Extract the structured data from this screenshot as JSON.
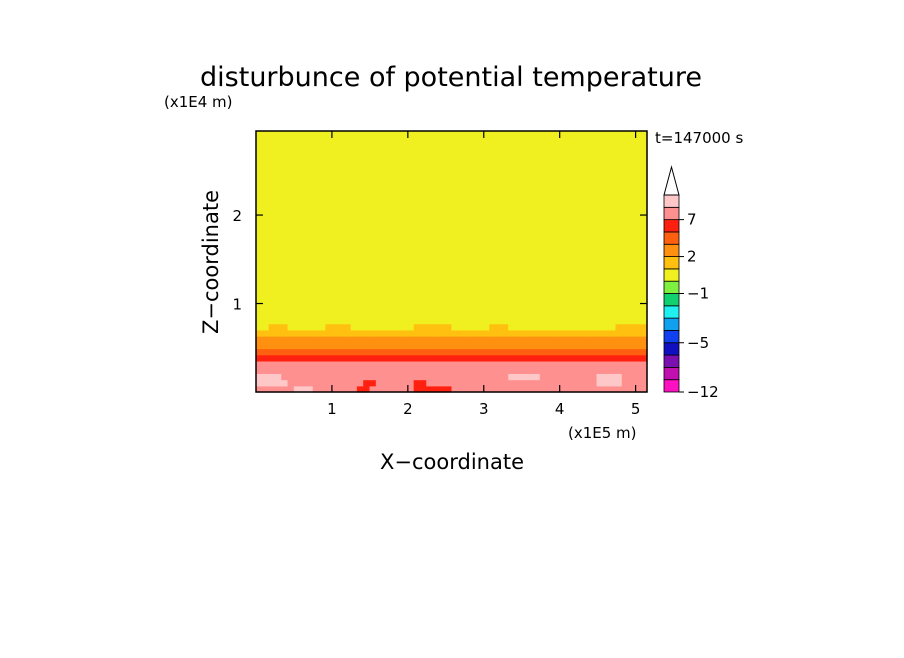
{
  "chart_data": {
    "type": "heatmap",
    "title": "disturbunce of potential temperature",
    "time_label": "t=147000 s",
    "xlabel": "X−coordinate",
    "ylabel": "Z−coordinate",
    "x_unit": "(x1E5 m)",
    "y_unit": "(x1E4 m)",
    "xlim": [
      0,
      5.15
    ],
    "ylim": [
      0,
      2.95
    ],
    "x_ticks": [
      1,
      2,
      3,
      4,
      5
    ],
    "y_ticks": [
      1,
      2
    ],
    "x_tick_labels": [
      "1",
      "2",
      "3",
      "4",
      "5"
    ],
    "y_tick_labels": [
      "1",
      "2"
    ],
    "grid": false,
    "colorbar": {
      "levels": [
        -12,
        -10,
        -8,
        -6.5,
        -5,
        -4,
        -3,
        -2,
        -1,
        0,
        1,
        2,
        3.5,
        5,
        7,
        9,
        11
      ],
      "colors": [
        "#ff10c0",
        "#c010b0",
        "#7a10b0",
        "#1010c0",
        "#1040f0",
        "#10a0f0",
        "#20f0f0",
        "#10d070",
        "#80f040",
        "#f0f020",
        "#ffc010",
        "#ff9010",
        "#ff6010",
        "#ff2010",
        "#ff9090",
        "#ffc8c8"
      ],
      "extend_max": true,
      "tick_values": [
        -12,
        -5,
        -1,
        2,
        7
      ],
      "tick_labels": [
        "−12",
        "−5",
        "−1",
        "2",
        "7"
      ]
    },
    "field_rows_bottom_to_top": [
      "eeeeeefffeeeeeeeddeeeeeeeddddddeeeeeeeeeeeeeeeeeeeeeeeeeeeeeee",
      "fffffeeeeeeeeeeeeddeeeeeeddeeeeeeeeeeeeeeeeeeeeeeeeeeeffffeeee",
      "ffffeeeeeeeeeeeeeeeeeeeeeeeeeeeeeeeeeeeefffffeeeeeeeeeffffeeee",
      "eeeeeeeeeeeeeeeeeeeeeeeeeeeeeeeeeeeeeeeeeeeeeeeeeeeeeeeeeeeeee",
      "eeeeeeeeeeeeeeeeeeeeeeeeeeeeeeeeeeeeeeeeeeeeeeeeeeeeeeeeeeeeee",
      "dddddddddddddddddddddddddddddddddddddddddddddddddddddddddddddd",
      "cccccccccccccccccccccccccccccccccccccccccccccccccccccccccccccc",
      "bbbbbbbbbbbbbbbbbbbbbbbbbbbbbbbbbbbbbbbbbbbbbbbbbbbbbbbbbbbbbb",
      "bbbbbbbbbbbbbbbbbbbbbbbbbbbbbbbbbbbbbbbbbbbbbbbbbbbbbbbbbbbbbb",
      "aaaaaaaaaaaaaaaaaaaaaaaaaaaaaaaaaaaaaaaaaaaaaaaaaaaaaaaaaaaaaa",
      "99aaa999999aaaa9999999999aaaaaa999999aaa99999999999999999aaaaa",
      "99999999999999999999999999999999999999999999999999999999999999",
      "99999999999999999999999999999999999999999999999999999999999999",
      "99999999999999999999999999999999999999999999999999999999999999",
      "99999999999999999999999999999999999999999999999999999999999999",
      "99999999999999999999999999999999999999999999999999999999999999",
      "99999999999999999999999999999999999999999999999999999999999999",
      "99999999999999999999999999999999999999999999999999999999999999",
      "99999999999999999999999999999999999999999999999999999999999999",
      "99999999999999999999999999999999999999999999999999999999999999",
      "99999999999999999999999999999999999999999999999999999999999999",
      "99999999999999999999999999999999999999999999999999999999999999",
      "99999999999999999999999999999999999999999999999999999999999999",
      "99999999999999999999999999999999999999999999999999999999999999",
      "99999999999999999999999999999999999999999999999999999999999999",
      "99999999999999999999999999999999999999999999999999999999999999",
      "99999999999999999999999999999999999999999999999999999999999999",
      "99999999999999999999999999999999999999999999999999999999999999",
      "99999999999999999999999999999999999999999999999999999999999999",
      "99999999999999999999999999999999999999999999999999999999999999",
      "99999999999999999999999999999999999999999999999999999999999999",
      "99999999999999999999999999999999999999999999999999999999999999",
      "99999999999999999999999999999999999999999999999999999999999999",
      "99999999999999999999999999999999999999999999999999999999999999",
      "99999999999999999999999999999999999999999999999999999999999999",
      "99999999999999999999999999999999999999999999999999999999999999",
      "99999999999999999999999999999999999999999999999999999999999999",
      "99999999999999999999999999999999999999999999999999999999999999",
      "99999999999999999999999999999999999999999999999999999999999999",
      "99999999999999999999999999999999999999999999999999999999999999",
      "99999999999999999999999999999999999999999999999999999999999999",
      "99999999999999999999999999999999999999999999999999999999999999"
    ]
  }
}
